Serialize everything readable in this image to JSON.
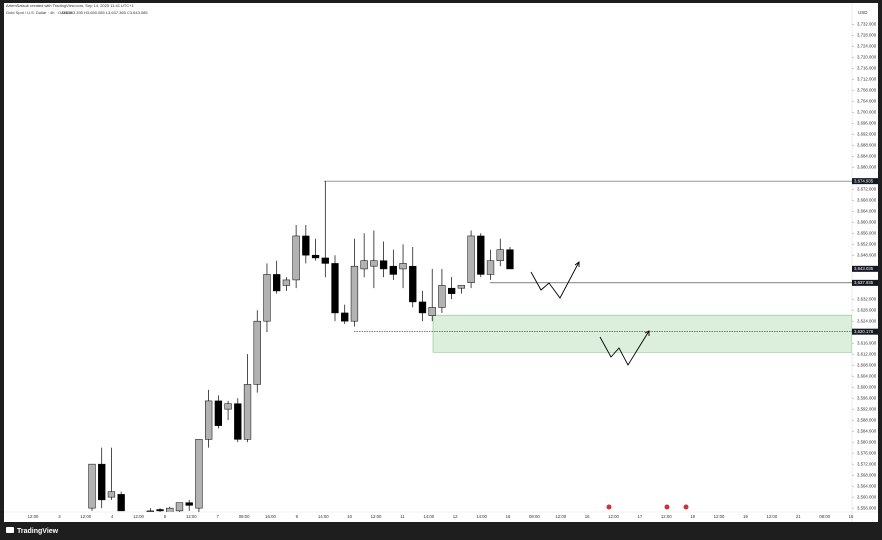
{
  "chart_data": {
    "type": "candlestick",
    "header": "ArtemSatsuk created with TradingView.com, Sep 14, 2025 11:41 UTC+1",
    "symbol": "Gold Spot / U.S. Dollar · 4h · OANDA",
    "ohlc_text": "O3,643.335 H3,650.085 L3,637.365 C3,643.085",
    "currency": "USD",
    "brand": "TradingView",
    "up_color": "#b2b2b2",
    "down_color": "#000000",
    "ylim": [
      3553.5,
      3739
    ],
    "yticks": [
      {
        "value": 3556,
        "label": "3,556.000"
      },
      {
        "value": 3560,
        "label": "3,560.000"
      },
      {
        "value": 3564,
        "label": "3,564.000"
      },
      {
        "value": 3568,
        "label": "3,568.000"
      },
      {
        "value": 3572,
        "label": "3,572.000"
      },
      {
        "value": 3576,
        "label": "3,576.000"
      },
      {
        "value": 3580,
        "label": "3,580.000"
      },
      {
        "value": 3584,
        "label": "3,584.000"
      },
      {
        "value": 3588,
        "label": "3,588.000"
      },
      {
        "value": 3592,
        "label": "3,592.000"
      },
      {
        "value": 3596,
        "label": "3,596.000"
      },
      {
        "value": 3600,
        "label": "3,600.000"
      },
      {
        "value": 3604,
        "label": "3,604.000"
      },
      {
        "value": 3608,
        "label": "3,608.000"
      },
      {
        "value": 3612,
        "label": "3,612.000"
      },
      {
        "value": 3616,
        "label": "3,616.000"
      },
      {
        "value": 3624,
        "label": "3,624.000"
      },
      {
        "value": 3628,
        "label": "3,628.000"
      },
      {
        "value": 3632,
        "label": "3,632.000"
      },
      {
        "value": 3648,
        "label": "3,648.000"
      },
      {
        "value": 3652,
        "label": "3,652.000"
      },
      {
        "value": 3656,
        "label": "3,656.000"
      },
      {
        "value": 3660,
        "label": "3,660.000"
      },
      {
        "value": 3664,
        "label": "3,664.000"
      },
      {
        "value": 3668,
        "label": "3,668.000"
      },
      {
        "value": 3672,
        "label": "3,672.000"
      },
      {
        "value": 3680,
        "label": "3,680.000"
      },
      {
        "value": 3684,
        "label": "3,684.000"
      },
      {
        "value": 3688,
        "label": "3,688.000"
      },
      {
        "value": 3692,
        "label": "3,692.000"
      },
      {
        "value": 3696,
        "label": "3,696.000"
      },
      {
        "value": 3700,
        "label": "3,700.000"
      },
      {
        "value": 3704,
        "label": "3,704.000"
      },
      {
        "value": 3708,
        "label": "3,708.000"
      },
      {
        "value": 3712,
        "label": "3,712.000"
      },
      {
        "value": 3716,
        "label": "3,716.000"
      },
      {
        "value": 3720,
        "label": "3,720.000"
      },
      {
        "value": 3724,
        "label": "3,724.000"
      },
      {
        "value": 3728,
        "label": "3,728.000"
      },
      {
        "value": 3732,
        "label": "3,732.000"
      }
    ],
    "price_levels": [
      {
        "value": 3674.935,
        "label": "3,674.935"
      },
      {
        "value": 3643.035,
        "label": "3,643.035"
      },
      {
        "value": 3637.935,
        "label": "3,637.935"
      },
      {
        "value": 3620.178,
        "label": "3,620.178"
      }
    ],
    "zone": [
      3612.7,
      3626.2
    ],
    "x_labels": [
      "12:00",
      "3",
      "12:00",
      "4",
      "12:00",
      "5",
      "12:00",
      "7",
      "08:00",
      "16:00",
      "9",
      "14:00",
      "10",
      "12:00",
      "11",
      "14:00",
      "12",
      "14:00",
      "16",
      "08:00",
      "12:00",
      "16",
      "12:00",
      "17",
      "12:00",
      "18",
      "12:00",
      "19",
      "12:00",
      "21",
      "08:00",
      "16"
    ],
    "open": [
      3556,
      3572,
      3560,
      3561,
      3552,
      3550,
      3555,
      3555.5,
      3554,
      3555,
      3558,
      3556,
      3581,
      3595,
      3592,
      3594,
      3581,
      3601,
      3624,
      3641,
      3637,
      3639,
      3655,
      3648,
      3647,
      3645,
      3627,
      3624,
      3643,
      3644,
      3646,
      3644,
      3643,
      3644,
      3631,
      3626,
      3629,
      3636,
      3636,
      3638,
      3655,
      3641,
      3646,
      3650
    ],
    "high": [
      3572,
      3578,
      3578,
      3562,
      3554,
      3553,
      3556,
      3556,
      3556.5,
      3558,
      3559,
      3581,
      3599,
      3597,
      3595,
      3596,
      3612,
      3628,
      3645,
      3646,
      3640,
      3659,
      3659,
      3654,
      3675,
      3648,
      3630,
      3654,
      3656,
      3657,
      3653,
      3650,
      3652,
      3651,
      3635,
      3643,
      3643,
      3640,
      3637,
      3657,
      3656,
      3650,
      3654,
      3651
    ],
    "low": [
      3555,
      3556,
      3559,
      3555,
      3548,
      3546,
      3553,
      3554,
      3553,
      3553,
      3555,
      3554,
      3578,
      3585,
      3588,
      3580,
      3580,
      3598,
      3620,
      3634,
      3635,
      3636,
      3645,
      3646,
      3640,
      3624,
      3623,
      3622,
      3640,
      3636,
      3640,
      3639,
      3636,
      3629,
      3624,
      3624,
      3627,
      3632,
      3634,
      3636,
      3640,
      3639,
      3644,
      3643
    ],
    "close": [
      3572,
      3559,
      3562,
      3555,
      3550,
      3551,
      3555,
      3555,
      3556,
      3558,
      3557,
      3581,
      3595,
      3586,
      3594,
      3581,
      3601,
      3624,
      3641,
      3635,
      3639,
      3655,
      3648,
      3647,
      3645,
      3627,
      3624,
      3644,
      3646,
      3646,
      3643,
      3641,
      3645,
      3631,
      3627,
      3629,
      3637,
      3634,
      3637,
      3655,
      3641,
      3646,
      3650,
      3643
    ]
  }
}
